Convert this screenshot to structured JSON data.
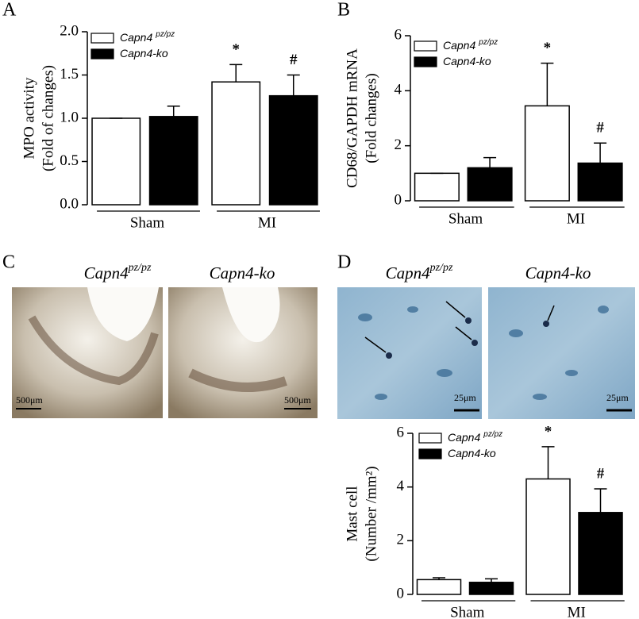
{
  "chart_data": [
    {
      "type": "bar",
      "label": "A",
      "ylabel": [
        "MPO activity",
        "(Fold of changes)"
      ],
      "categories": [
        "Sham",
        "MI"
      ],
      "series": [
        {
          "name": "Capn4",
          "name_sup": "pz/pz",
          "color": "#ffffff",
          "values": [
            1.0,
            1.42
          ],
          "errors": [
            0,
            0.2
          ],
          "annotations": [
            null,
            "*"
          ]
        },
        {
          "name": "Capn4-ko",
          "color": "#000000",
          "values": [
            1.02,
            1.26
          ],
          "errors": [
            0.12,
            0.24
          ],
          "annotations": [
            null,
            "#"
          ]
        }
      ],
      "ylim": [
        0,
        2
      ],
      "yticks": [
        {
          "value": 0,
          "label": "0.0"
        },
        0.5,
        {
          "value": 1,
          "label": "1.0"
        },
        1.5,
        {
          "value": 2,
          "label": "2.0"
        }
      ]
    },
    {
      "type": "bar",
      "label": "B",
      "ylabel": [
        "CD68/GAPDH mRNA",
        "(Fold changes)"
      ],
      "categories": [
        "Sham",
        "MI"
      ],
      "series": [
        {
          "name": "Capn4",
          "name_sup": "pz/pz",
          "color": "#ffffff",
          "values": [
            1.0,
            3.45
          ],
          "errors": [
            0,
            1.55
          ],
          "annotations": [
            null,
            "*"
          ]
        },
        {
          "name": "Capn4-ko",
          "color": "#000000",
          "values": [
            1.2,
            1.37
          ],
          "errors": [
            0.37,
            0.73
          ],
          "annotations": [
            null,
            "#"
          ]
        }
      ],
      "ylim": [
        0,
        6
      ],
      "yticks": [
        0,
        2,
        4,
        6
      ]
    },
    {
      "type": "bar",
      "ylabel": [
        "Mast cell",
        "(Number /mm²)"
      ],
      "categories": [
        "Sham",
        "MI"
      ],
      "series": [
        {
          "name": "Capn4",
          "name_sup": "pz/pz",
          "color": "#ffffff",
          "values": [
            0.55,
            4.3
          ],
          "errors": [
            0.07,
            1.2
          ],
          "annotations": [
            null,
            "*"
          ]
        },
        {
          "name": "Capn4-ko",
          "color": "#000000",
          "values": [
            0.45,
            3.05
          ],
          "errors": [
            0.13,
            0.88
          ],
          "annotations": [
            null,
            "#"
          ]
        }
      ],
      "ylim": [
        0,
        6
      ],
      "yticks": [
        0,
        2,
        4,
        6
      ]
    }
  ],
  "images": [
    {
      "label": "C",
      "captions": [
        {
          "text": "Capn4",
          "sup": "pz/pz"
        },
        {
          "text": "Capn4-ko"
        }
      ],
      "scales": [
        "500μm",
        "500μm"
      ]
    },
    {
      "label": "D",
      "captions": [
        {
          "text": "Capn4",
          "sup": "pz/pz"
        },
        {
          "text": "Capn4-ko"
        }
      ],
      "scales": [
        "25μm",
        "25μm"
      ]
    }
  ]
}
